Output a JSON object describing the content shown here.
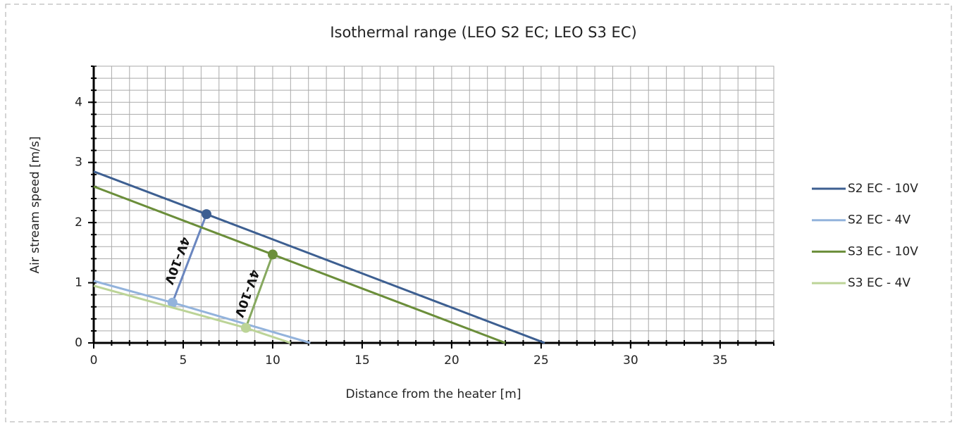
{
  "chart_data": {
    "type": "line",
    "title": "Isothermal range (LEO S2 EC; LEO S3 EC)",
    "x_label": "Distance from the heater [m]",
    "y_label": "Air stream speed [m/s]",
    "xlim": [
      0,
      38
    ],
    "ylim": [
      0,
      4.6
    ],
    "xticks": [
      0,
      5,
      10,
      15,
      20,
      25,
      30,
      35
    ],
    "yticks": [
      0,
      1,
      2,
      3,
      4
    ],
    "grid": true,
    "minor_grid": {
      "x_step": 1,
      "y_step": 0.2
    },
    "legend": "right",
    "series": [
      {
        "name": "S2 EC - 10V",
        "color": "#3d5f91",
        "x": [
          0,
          6.3,
          25.2
        ],
        "values": [
          2.85,
          2.14,
          0
        ],
        "marker": 1
      },
      {
        "name": "S2 EC - 4V",
        "color": "#93b3dc",
        "x": [
          0,
          4.4,
          12.1
        ],
        "values": [
          1.03,
          0.67,
          0
        ],
        "marker": 1
      },
      {
        "name": "S3 EC - 10V",
        "color": "#6b8e3a",
        "x": [
          0,
          10,
          23
        ],
        "values": [
          2.6,
          1.47,
          0
        ],
        "marker": 1
      },
      {
        "name": "S3 EC - 4V",
        "color": "#bcd497",
        "x": [
          0,
          8.5,
          11
        ],
        "values": [
          0.95,
          0.25,
          0
        ],
        "marker": 1
      }
    ],
    "connectors": [
      {
        "label": "4V–10V",
        "color": "#6a86bf",
        "x": [
          4.4,
          6.3
        ],
        "values": [
          0.67,
          2.14
        ]
      },
      {
        "label": "4V–10V",
        "color": "#86a85f",
        "x": [
          8.5,
          10
        ],
        "values": [
          0.25,
          1.47
        ]
      }
    ]
  }
}
